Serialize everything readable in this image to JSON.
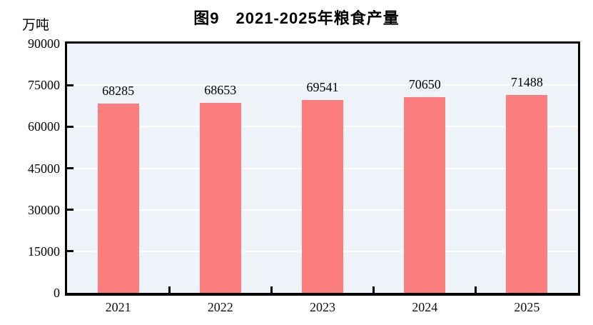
{
  "figure": {
    "title": "图9　2021-2025年粮食产量",
    "unit_label": "万吨"
  },
  "chart_data": {
    "type": "bar",
    "title": "图9　2021-2025年粮食产量",
    "ylabel": "万吨",
    "xlabel": "",
    "categories": [
      "2021",
      "2022",
      "2023",
      "2024",
      "2025"
    ],
    "values": [
      68285,
      68653,
      69541,
      70650,
      71488
    ],
    "value_labels": [
      "68285",
      "68653",
      "69541",
      "70650",
      "71488"
    ],
    "ylim": [
      0,
      90000
    ],
    "yticks": [
      0,
      15000,
      30000,
      45000,
      60000,
      75000,
      90000
    ],
    "ytick_labels": [
      "0",
      "15000",
      "30000",
      "45000",
      "60000",
      "75000",
      "90000"
    ],
    "grid": true,
    "legend_position": "none",
    "colors": {
      "bar": "#fc7d7d",
      "plot_background": "#edf3f8",
      "gridline": "#ffffff",
      "axis": "#000000",
      "text": "#000000"
    }
  }
}
